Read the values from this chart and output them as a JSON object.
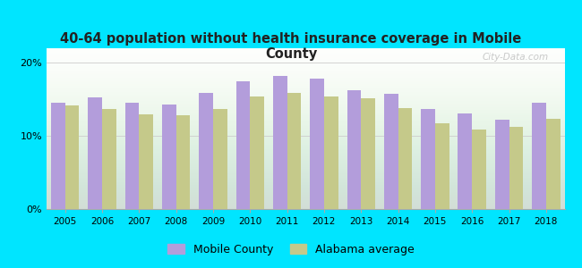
{
  "title": "40-64 population without health insurance coverage in Mobile\nCounty",
  "years": [
    2005,
    2006,
    2007,
    2008,
    2009,
    2010,
    2011,
    2012,
    2013,
    2014,
    2015,
    2016,
    2017,
    2018
  ],
  "mobile_county": [
    14.5,
    15.3,
    14.5,
    14.3,
    15.9,
    17.5,
    18.2,
    17.8,
    16.2,
    15.8,
    13.7,
    13.1,
    12.2,
    14.6
  ],
  "alabama_avg": [
    14.2,
    13.7,
    12.9,
    12.8,
    13.7,
    15.4,
    15.9,
    15.4,
    15.2,
    13.8,
    11.7,
    10.9,
    11.2,
    12.3
  ],
  "bar_color_mobile": "#b39ddb",
  "bar_color_alabama": "#c5c98a",
  "background_outer": "#00e5ff",
  "background_inner": "#ffffff",
  "ylim": [
    0,
    22
  ],
  "yticks": [
    0,
    10,
    20
  ],
  "ytick_labels": [
    "0%",
    "10%",
    "20%"
  ],
  "legend_mobile": "Mobile County",
  "legend_alabama": "Alabama average",
  "watermark": "City-Data.com",
  "bar_width": 0.38
}
